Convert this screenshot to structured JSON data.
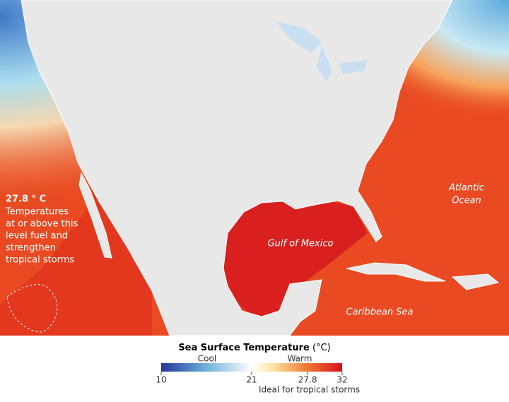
{
  "annotation": {
    "heading": "27.8 ° C",
    "lines": [
      "Temperatures",
      "at or above this",
      "level fuel and",
      "strengthen",
      "tropical storms"
    ]
  },
  "places": {
    "atlantic": [
      "Atlantic",
      "Ocean"
    ],
    "gulf": "Gulf of Mexico",
    "caribbean": "Caribbean Sea"
  },
  "legend": {
    "title": "Sea Surface Temperature",
    "unit": "(°C)",
    "cool": "Cool",
    "warm": "Warm",
    "range": [
      10,
      32
    ],
    "ticks": [
      10,
      21,
      27.8,
      32
    ],
    "note": "Ideal for tropical storms"
  }
}
